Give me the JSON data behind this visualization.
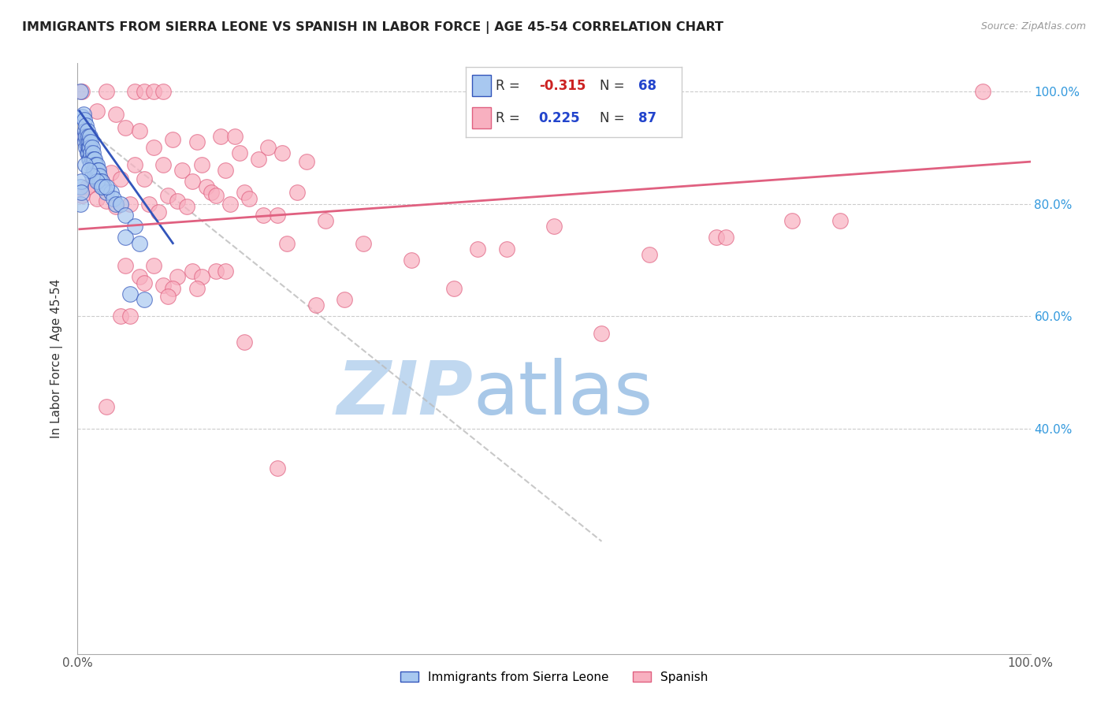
{
  "title": "IMMIGRANTS FROM SIERRA LEONE VS SPANISH IN LABOR FORCE | AGE 45-54 CORRELATION CHART",
  "source": "Source: ZipAtlas.com",
  "ylabel": "In Labor Force | Age 45-54",
  "color_blue": "#A8C8F0",
  "color_pink": "#F8B0C0",
  "line_blue": "#3355BB",
  "line_pink": "#E06080",
  "watermark_zip_color": "#C0D8F0",
  "watermark_atlas_color": "#A8C8E8",
  "blue_points": [
    [
      0.003,
      1.0
    ],
    [
      0.005,
      0.955
    ],
    [
      0.006,
      0.96
    ],
    [
      0.007,
      0.95
    ],
    [
      0.007,
      0.92
    ],
    [
      0.008,
      0.93
    ],
    [
      0.008,
      0.91
    ],
    [
      0.009,
      0.94
    ],
    [
      0.009,
      0.92
    ],
    [
      0.009,
      0.9
    ],
    [
      0.01,
      0.93
    ],
    [
      0.01,
      0.91
    ],
    [
      0.01,
      0.89
    ],
    [
      0.011,
      0.92
    ],
    [
      0.011,
      0.9
    ],
    [
      0.011,
      0.89
    ],
    [
      0.012,
      0.91
    ],
    [
      0.012,
      0.9
    ],
    [
      0.012,
      0.88
    ],
    [
      0.013,
      0.92
    ],
    [
      0.013,
      0.9
    ],
    [
      0.013,
      0.88
    ],
    [
      0.014,
      0.91
    ],
    [
      0.014,
      0.89
    ],
    [
      0.014,
      0.87
    ],
    [
      0.015,
      0.9
    ],
    [
      0.015,
      0.88
    ],
    [
      0.016,
      0.89
    ],
    [
      0.016,
      0.87
    ],
    [
      0.017,
      0.88
    ],
    [
      0.017,
      0.86
    ],
    [
      0.018,
      0.88
    ],
    [
      0.018,
      0.86
    ],
    [
      0.019,
      0.87
    ],
    [
      0.019,
      0.85
    ],
    [
      0.02,
      0.87
    ],
    [
      0.02,
      0.85
    ],
    [
      0.021,
      0.86
    ],
    [
      0.021,
      0.85
    ],
    [
      0.022,
      0.86
    ],
    [
      0.022,
      0.84
    ],
    [
      0.023,
      0.85
    ],
    [
      0.024,
      0.84
    ],
    [
      0.025,
      0.84
    ],
    [
      0.026,
      0.83
    ],
    [
      0.028,
      0.83
    ],
    [
      0.03,
      0.82
    ],
    [
      0.035,
      0.82
    ],
    [
      0.038,
      0.81
    ],
    [
      0.015,
      0.85
    ],
    [
      0.02,
      0.84
    ],
    [
      0.025,
      0.83
    ],
    [
      0.03,
      0.83
    ],
    [
      0.008,
      0.87
    ],
    [
      0.012,
      0.86
    ],
    [
      0.04,
      0.8
    ],
    [
      0.045,
      0.8
    ],
    [
      0.05,
      0.78
    ],
    [
      0.06,
      0.76
    ],
    [
      0.05,
      0.74
    ],
    [
      0.065,
      0.73
    ],
    [
      0.003,
      0.83
    ],
    [
      0.003,
      0.8
    ],
    [
      0.055,
      0.64
    ],
    [
      0.07,
      0.63
    ],
    [
      0.004,
      0.84
    ],
    [
      0.004,
      0.82
    ]
  ],
  "pink_points": [
    [
      0.005,
      1.0
    ],
    [
      0.03,
      1.0
    ],
    [
      0.06,
      1.0
    ],
    [
      0.07,
      1.0
    ],
    [
      0.08,
      1.0
    ],
    [
      0.09,
      1.0
    ],
    [
      0.95,
      1.0
    ],
    [
      0.02,
      0.965
    ],
    [
      0.04,
      0.96
    ],
    [
      0.05,
      0.935
    ],
    [
      0.065,
      0.93
    ],
    [
      0.008,
      0.92
    ],
    [
      0.15,
      0.92
    ],
    [
      0.165,
      0.92
    ],
    [
      0.1,
      0.915
    ],
    [
      0.125,
      0.91
    ],
    [
      0.08,
      0.9
    ],
    [
      0.2,
      0.9
    ],
    [
      0.17,
      0.89
    ],
    [
      0.215,
      0.89
    ],
    [
      0.19,
      0.88
    ],
    [
      0.24,
      0.875
    ],
    [
      0.06,
      0.87
    ],
    [
      0.09,
      0.87
    ],
    [
      0.13,
      0.87
    ],
    [
      0.11,
      0.86
    ],
    [
      0.155,
      0.86
    ],
    [
      0.035,
      0.855
    ],
    [
      0.045,
      0.845
    ],
    [
      0.07,
      0.845
    ],
    [
      0.025,
      0.84
    ],
    [
      0.12,
      0.84
    ],
    [
      0.015,
      0.835
    ],
    [
      0.01,
      0.83
    ],
    [
      0.135,
      0.83
    ],
    [
      0.14,
      0.82
    ],
    [
      0.175,
      0.82
    ],
    [
      0.23,
      0.82
    ],
    [
      0.005,
      0.815
    ],
    [
      0.095,
      0.815
    ],
    [
      0.145,
      0.815
    ],
    [
      0.02,
      0.81
    ],
    [
      0.18,
      0.81
    ],
    [
      0.03,
      0.805
    ],
    [
      0.105,
      0.805
    ],
    [
      0.055,
      0.8
    ],
    [
      0.075,
      0.8
    ],
    [
      0.16,
      0.8
    ],
    [
      0.04,
      0.795
    ],
    [
      0.115,
      0.795
    ],
    [
      0.085,
      0.785
    ],
    [
      0.195,
      0.78
    ],
    [
      0.21,
      0.78
    ],
    [
      0.26,
      0.77
    ],
    [
      0.75,
      0.77
    ],
    [
      0.8,
      0.77
    ],
    [
      0.5,
      0.76
    ],
    [
      0.67,
      0.74
    ],
    [
      0.68,
      0.74
    ],
    [
      0.22,
      0.73
    ],
    [
      0.3,
      0.73
    ],
    [
      0.42,
      0.72
    ],
    [
      0.45,
      0.72
    ],
    [
      0.6,
      0.71
    ],
    [
      0.35,
      0.7
    ],
    [
      0.05,
      0.69
    ],
    [
      0.08,
      0.69
    ],
    [
      0.12,
      0.68
    ],
    [
      0.145,
      0.68
    ],
    [
      0.155,
      0.68
    ],
    [
      0.065,
      0.67
    ],
    [
      0.105,
      0.67
    ],
    [
      0.13,
      0.67
    ],
    [
      0.07,
      0.66
    ],
    [
      0.09,
      0.655
    ],
    [
      0.1,
      0.65
    ],
    [
      0.125,
      0.65
    ],
    [
      0.395,
      0.65
    ],
    [
      0.095,
      0.635
    ],
    [
      0.28,
      0.63
    ],
    [
      0.25,
      0.62
    ],
    [
      0.045,
      0.6
    ],
    [
      0.055,
      0.6
    ],
    [
      0.55,
      0.57
    ],
    [
      0.175,
      0.555
    ],
    [
      0.03,
      0.44
    ],
    [
      0.21,
      0.33
    ]
  ],
  "blue_trend": [
    0.002,
    0.965,
    0.1,
    0.73
  ],
  "blue_dash_trend": [
    0.02,
    0.92,
    0.55,
    0.2
  ],
  "pink_trend": [
    0.002,
    0.755,
    1.0,
    0.875
  ],
  "xlim": [
    0.0,
    1.0
  ],
  "ylim": [
    0.0,
    1.05
  ],
  "yticks": [
    0.4,
    0.6,
    0.8,
    1.0
  ],
  "ytick_labels_right": [
    "40.0%",
    "60.0%",
    "80.0%",
    "100.0%"
  ],
  "xtick_left": "0.0%",
  "xtick_right": "100.0%"
}
